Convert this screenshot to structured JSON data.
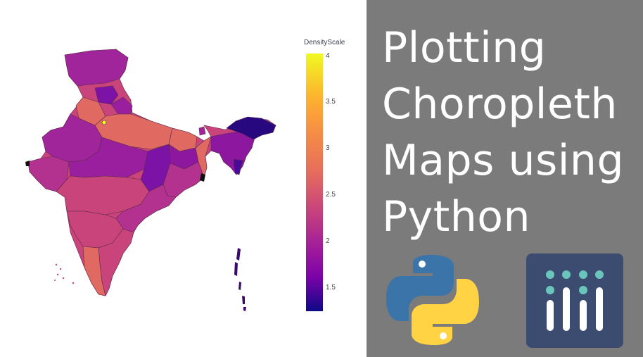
{
  "title": {
    "line1": "Plotting",
    "line2": "Choropleth",
    "line3": "Maps using",
    "line4": "Python"
  },
  "legend": {
    "title": "DensityScale",
    "ticks": [
      "4",
      "3.5",
      "3",
      "2.5",
      "2",
      "1.5"
    ],
    "range": [
      1.2,
      4.1
    ],
    "colorscale": [
      "#0d0887",
      "#7a02a8",
      "#a21d9a",
      "#c5407e",
      "#e76f5a",
      "#f68f44",
      "#fdb22f",
      "#f0f921"
    ]
  },
  "map": {
    "region": "India",
    "colors": {
      "base": "#c9447a",
      "purple": "#8e17a0",
      "orange": "#e06a62",
      "dark": "#28087f"
    }
  },
  "logos": [
    "python-logo",
    "plotly-logo"
  ],
  "colors": {
    "panel": "#7b7b7b",
    "plotly_bg": "#3c4c71",
    "plotly_dot": "#6ac5bd",
    "python_blue": "#3b74a8",
    "python_yellow": "#ffd343"
  }
}
